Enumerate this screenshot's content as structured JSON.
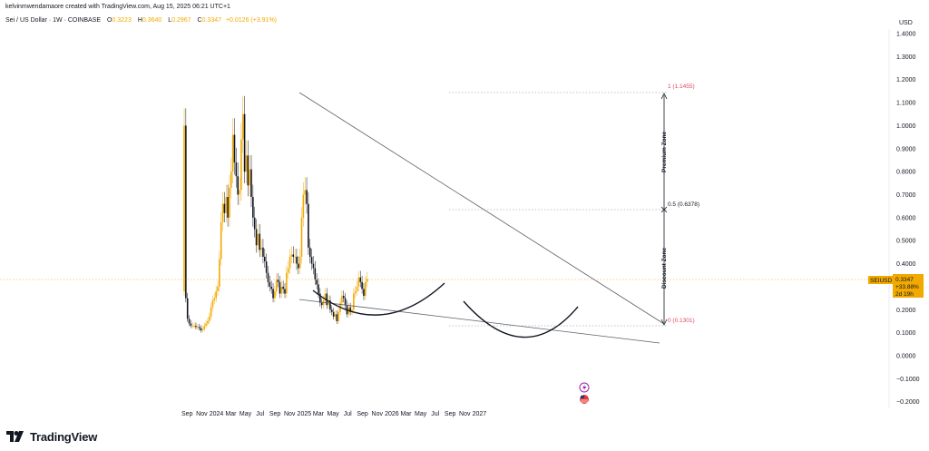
{
  "header": {
    "attribution": "kelvinmwendamaore created with TradingView.com, Aug 15, 2025 06:21 UTC+1"
  },
  "symbol": {
    "title": "Sei / US Dollar · 1W · COINBASE",
    "open_label": "O",
    "open": "0.3223",
    "high_label": "H",
    "high": "0.3640",
    "low_label": "L",
    "low": "0.2967",
    "close_label": "C",
    "close": "0.3347",
    "change": "+0.0126 (+3.91%)"
  },
  "price_tag": {
    "ticker": "SEIUSD",
    "price": "0.3347",
    "change_pct": "+33.88%",
    "countdown": "2d 19h"
  },
  "brand": {
    "name": "TradingView"
  },
  "colors": {
    "up": "#f2a900",
    "down": "#131722",
    "trendline": "#555555",
    "fib_red": "#e0475b",
    "price_line": "#f2a900",
    "event_purple": "#9c27b0",
    "event_red": "#e53935"
  },
  "chart_data": {
    "type": "candlestick",
    "currency": "USD",
    "y_ticks": [
      -0.2,
      -0.1,
      0.0,
      0.1,
      0.2,
      0.3,
      0.4,
      0.5,
      0.6,
      0.7,
      0.8,
      0.9,
      1.0,
      1.1,
      1.2,
      1.3,
      1.4
    ],
    "y_tick_labels": [
      "−0.2000",
      "−0.1000",
      "0.0000",
      "0.1000",
      "0.2000",
      "0.3000",
      "0.4000",
      "0.5000",
      "0.6000",
      "0.7000",
      "0.8000",
      "0.9000",
      "1.0000",
      "1.1000",
      "1.2000",
      "1.3000",
      "1.4000"
    ],
    "x_start": "2023-08-14",
    "x_ticks": [
      {
        "label": "Sep",
        "date": "2023-09-01"
      },
      {
        "label": "Nov",
        "date": "2023-11-01"
      },
      {
        "label": "2024",
        "date": "2024-01-01"
      },
      {
        "label": "Mar",
        "date": "2024-03-01"
      },
      {
        "label": "May",
        "date": "2024-05-01"
      },
      {
        "label": "Jul",
        "date": "2024-07-01"
      },
      {
        "label": "Sep",
        "date": "2024-09-01"
      },
      {
        "label": "Nov",
        "date": "2024-11-01"
      },
      {
        "label": "2025",
        "date": "2025-01-01"
      },
      {
        "label": "Mar",
        "date": "2025-03-01"
      },
      {
        "label": "May",
        "date": "2025-05-01"
      },
      {
        "label": "Jul",
        "date": "2025-07-01"
      },
      {
        "label": "Sep",
        "date": "2025-09-01"
      },
      {
        "label": "Nov",
        "date": "2025-11-01"
      },
      {
        "label": "2026",
        "date": "2026-01-01"
      },
      {
        "label": "Mar",
        "date": "2026-03-01"
      },
      {
        "label": "May",
        "date": "2026-05-01"
      },
      {
        "label": "Jul",
        "date": "2026-07-01"
      },
      {
        "label": "Sep",
        "date": "2026-09-01"
      },
      {
        "label": "Nov",
        "date": "2026-11-01"
      },
      {
        "label": "2027",
        "date": "2027-01-01"
      }
    ],
    "candles_weekly_close": [
      1.0,
      0.25,
      0.16,
      0.14,
      0.13,
      0.13,
      0.13,
      0.125,
      0.125,
      0.12,
      0.11,
      0.115,
      0.13,
      0.14,
      0.15,
      0.17,
      0.21,
      0.24,
      0.25,
      0.28,
      0.3,
      0.42,
      0.58,
      0.66,
      0.62,
      0.69,
      0.6,
      0.73,
      0.8,
      0.96,
      0.84,
      0.78,
      0.7,
      0.72,
      0.94,
      1.05,
      0.8,
      0.87,
      0.74,
      0.81,
      0.69,
      0.6,
      0.55,
      0.48,
      0.53,
      0.46,
      0.47,
      0.43,
      0.41,
      0.36,
      0.32,
      0.3,
      0.29,
      0.25,
      0.28,
      0.33,
      0.32,
      0.27,
      0.3,
      0.29,
      0.27,
      0.36,
      0.38,
      0.43,
      0.44,
      0.43,
      0.43,
      0.4,
      0.38,
      0.43,
      0.6,
      0.7,
      0.72,
      0.66,
      0.47,
      0.43,
      0.4,
      0.38,
      0.33,
      0.31,
      0.27,
      0.23,
      0.22,
      0.24,
      0.27,
      0.22,
      0.24,
      0.2,
      0.19,
      0.17,
      0.18,
      0.15,
      0.19,
      0.23,
      0.26,
      0.25,
      0.22,
      0.18,
      0.21,
      0.19,
      0.2,
      0.27,
      0.28,
      0.3,
      0.34,
      0.32,
      0.29,
      0.26,
      0.32,
      0.3347
    ],
    "annotations": {
      "fib_levels": [
        {
          "label": "1 (1.1455)",
          "value": 1.1455
        },
        {
          "label": "0.5 (0.6378)",
          "value": 0.6378
        },
        {
          "label": "0 (0.1301)",
          "value": 0.1301
        }
      ],
      "zones": [
        "Premium Zone",
        "Discount Zone"
      ],
      "descending_resistance": {
        "from": {
          "date": "2024-03-11",
          "value": 1.14
        },
        "to": {
          "date": "2026-01-05",
          "value": 0.13
        }
      },
      "lower_support": {
        "from": {
          "date": "2024-03-11",
          "value": 0.245
        },
        "to": {
          "date": "2026-01-05",
          "value": 0.055
        }
      }
    }
  }
}
